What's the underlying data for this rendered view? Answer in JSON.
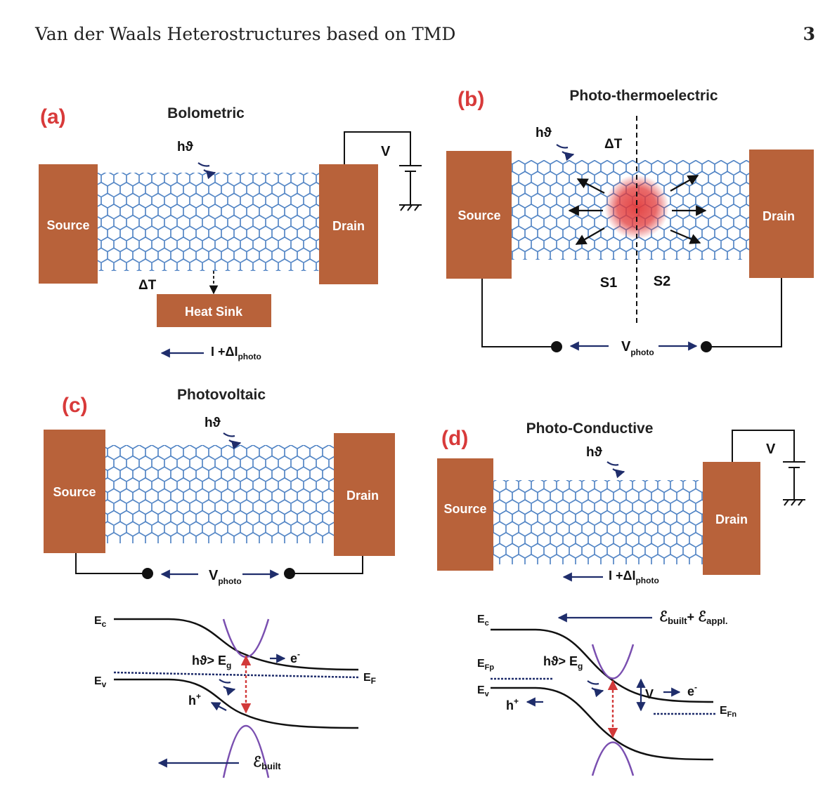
{
  "header": {
    "running_title": "Van der Waals Heterostructures based on TMD",
    "page_number": "3"
  },
  "colors": {
    "electrode": "#b8623a",
    "lattice": "#4a7fc2",
    "panel_label": "#d83a3a",
    "arrow": "#1f2d6b",
    "band_dashed": "#d23a3a",
    "cone": "#7a4fb0",
    "hotspot": "#e23a3a"
  },
  "panels": {
    "a": {
      "label": "(a)",
      "title": "Bolometric",
      "source": "Source",
      "drain": "Drain",
      "photon": "hϑ",
      "delta_t": "ΔT",
      "heat_sink": "Heat Sink",
      "voltage": "V",
      "current_main": "I +ΔI",
      "current_sub": "photo"
    },
    "b": {
      "label": "(b)",
      "title": "Photo-thermoelectric",
      "source": "Source",
      "drain": "Drain",
      "photon": "hϑ",
      "delta_t": "ΔT",
      "s1": "S1",
      "s2": "S2",
      "vphoto_main": "V",
      "vphoto_sub": "photo"
    },
    "c": {
      "label": "(c)",
      "title": "Photovoltaic",
      "source": "Source",
      "drain": "Drain",
      "photon": "hϑ",
      "vphoto_main": "V",
      "vphoto_sub": "photo",
      "band": {
        "ec_main": "E",
        "ec_sub": "c",
        "ev_main": "E",
        "ev_sub": "v",
        "ef_main": "E",
        "ef_sub": "F",
        "excite_main": "hϑ> E",
        "excite_sub": "g",
        "electron_main": "e",
        "electron_sup": "-",
        "hole_main": "h",
        "hole_sup": "+",
        "field_main": "ℰ",
        "field_sub": "built"
      }
    },
    "d": {
      "label": "(d)",
      "title": "Photo-Conductive",
      "source": "Source",
      "drain": "Drain",
      "photon": "hϑ",
      "voltage": "V",
      "current_main": "I +ΔI",
      "current_sub": "photo",
      "band": {
        "ec_main": "E",
        "ec_sub": "c",
        "ev_main": "E",
        "ev_sub": "v",
        "efp_main": "E",
        "efp_sub": "Fp",
        "efn_main": "E",
        "efn_sub": "Fn",
        "excite_main": "hϑ> E",
        "excite_sub": "g",
        "electron_main": "e",
        "electron_sup": "-",
        "hole_main": "h",
        "hole_sup": "+",
        "bias": "V",
        "field_a": "ℰ",
        "field_a_sub": "built",
        "field_plus": "+ ",
        "field_b": "ℰ",
        "field_b_sub": "appl."
      }
    }
  }
}
